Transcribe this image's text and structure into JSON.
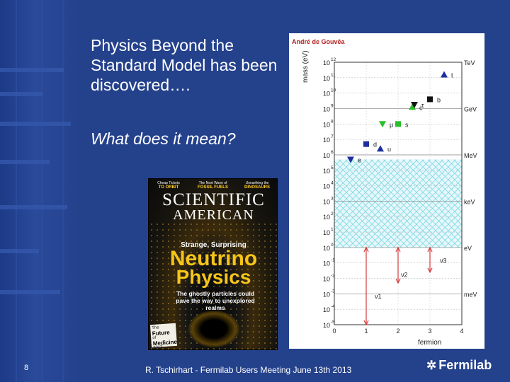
{
  "slide": {
    "title": "Physics Beyond the Standard Model has been discovered….",
    "subtitle": "What does it mean?",
    "page_number": "8",
    "footer": "R. Tschirhart - Fermilab Users Meeting June 13th 2013",
    "logo_text": "Fermilab",
    "logo_glyph": "✲"
  },
  "magazine": {
    "teasers": [
      {
        "head": "Cheap Tickets",
        "sub": "TO ORBIT"
      },
      {
        "head": "The Next Wave of",
        "sub": "FOSSIL FUELS"
      },
      {
        "head": "Unearthing the",
        "sub": "DINOSAURS"
      }
    ],
    "masthead_line1": "SCIENTIFIC",
    "masthead_line2": "AMERICAN",
    "kicker": "Strange, Surprising",
    "headline1": "Neutrino",
    "headline2": "Physics",
    "blurb": "The ghostly particles could pave the way to unexplored realms",
    "badge_top": "The",
    "badge_main": "Future",
    "badge_mid": "of",
    "badge_sub": "Medicine",
    "badge_year": "2013"
  },
  "chart_data": {
    "type": "scatter",
    "author": "André de Gouvêa",
    "ylabel": "mass (eV)",
    "xlabel": "fermion",
    "x_ticks": [
      "0",
      "1",
      "2",
      "3",
      "4"
    ],
    "y_tick_exponents": [
      "12",
      "11",
      "10",
      "9",
      "8",
      "7",
      "6",
      "5",
      "4",
      "3",
      "2",
      "1",
      "0",
      "-1",
      "-2",
      "-3",
      "-4",
      "-5"
    ],
    "y_tick_base": "10",
    "right_labels": [
      "TeV",
      "GeV",
      "MeV",
      "keV",
      "eV",
      "meV"
    ],
    "points": [
      {
        "label": "t",
        "generation": 3,
        "marker": "triangle",
        "color": "#1a2f9c",
        "log10_mass": 11.2
      },
      {
        "label": "b",
        "generation": 3,
        "marker": "square",
        "color": "#111111",
        "log10_mass": 9.6
      },
      {
        "label": "c",
        "generation": 2,
        "marker": "triangle",
        "color": "#2bbf2b",
        "log10_mass": 9.1
      },
      {
        "label": "τ",
        "generation": 3,
        "marker": "triangle-down",
        "color": "#111111",
        "log10_mass": 9.25
      },
      {
        "label": "s",
        "generation": 2,
        "marker": "square",
        "color": "#2bbf2b",
        "log10_mass": 8.0
      },
      {
        "label": "μ",
        "generation": 2,
        "marker": "triangle-down",
        "color": "#2bbf2b",
        "log10_mass": 8.0
      },
      {
        "label": "d",
        "generation": 1,
        "marker": "square",
        "color": "#1a2f9c",
        "log10_mass": 6.7
      },
      {
        "label": "u",
        "generation": 1,
        "marker": "triangle",
        "color": "#1a2f9c",
        "log10_mass": 6.4
      },
      {
        "label": "e",
        "generation": 1,
        "marker": "triangle-down",
        "color": "#1a2f9c",
        "log10_mass": 5.7
      }
    ],
    "neutrinos": [
      {
        "label": "ν3",
        "x": 3,
        "log10_top": 0.0,
        "log10_bottom": -1.6
      },
      {
        "label": "ν2",
        "x": 2,
        "log10_top": 0.0,
        "log10_bottom": -2.3
      },
      {
        "label": "ν1",
        "x": 1,
        "log10_top": 0.0,
        "log10_bottom": -5.0
      }
    ],
    "excluded_band_log10": [
      0.0,
      5.7
    ]
  }
}
